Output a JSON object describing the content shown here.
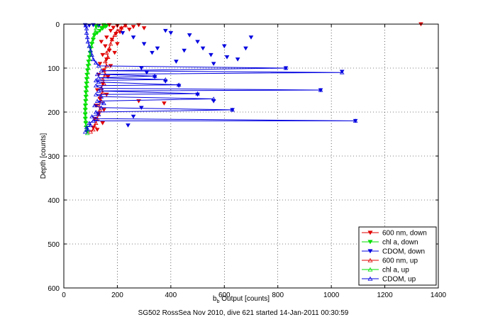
{
  "chart_data": {
    "type": "scatter",
    "x_axis": {
      "label_main": "b",
      "label_sub": "b",
      "label_rest": " Output [counts]",
      "range": [
        0,
        1400
      ],
      "ticks": [
        "0",
        "200",
        "400",
        "600",
        "800",
        "1000",
        "1200",
        "1400"
      ]
    },
    "y_axis": {
      "label": "Depth [counts]",
      "range": [
        0,
        600
      ],
      "reversed": true,
      "ticks": [
        "0",
        "100",
        "200",
        "300",
        "400",
        "500",
        "600"
      ]
    },
    "grid": true,
    "legend_position": "bottom-right",
    "footer": "SG502 RossSea Nov 2010, dive 621 started 14-Jan-2011 00:30:59",
    "colors": {
      "red": "#e00000",
      "green": "#00e000",
      "blue": "#0000e0"
    },
    "series": [
      {
        "name": "600 nm, down",
        "color": "#e00000",
        "marker": "down-triangle",
        "line": false,
        "points": [
          [
            150,
            5
          ],
          [
            170,
            2
          ],
          [
            185,
            8
          ],
          [
            200,
            4
          ],
          [
            215,
            10
          ],
          [
            230,
            3
          ],
          [
            245,
            12
          ],
          [
            260,
            6
          ],
          [
            280,
            2
          ],
          [
            300,
            9
          ],
          [
            175,
            15
          ],
          [
            195,
            22
          ],
          [
            210,
            18
          ],
          [
            160,
            30
          ],
          [
            140,
            40
          ],
          [
            180,
            35
          ],
          [
            200,
            45
          ],
          [
            155,
            50
          ],
          [
            170,
            60
          ],
          [
            145,
            70
          ],
          [
            190,
            65
          ],
          [
            160,
            80
          ],
          [
            135,
            90
          ],
          [
            175,
            95
          ],
          [
            150,
            105
          ],
          [
            130,
            115
          ],
          [
            165,
            120
          ],
          [
            145,
            135
          ],
          [
            125,
            150
          ],
          [
            160,
            160
          ],
          [
            135,
            170
          ],
          [
            120,
            185
          ],
          [
            150,
            195
          ],
          [
            130,
            205
          ],
          [
            115,
            215
          ],
          [
            145,
            225
          ],
          [
            110,
            235
          ],
          [
            125,
            240
          ],
          [
            1335,
            0
          ],
          [
            375,
            180
          ],
          [
            280,
            175
          ]
        ]
      },
      {
        "name": "chl a, down",
        "color": "#00e000",
        "marker": "down-triangle",
        "line": false,
        "points": [
          [
            120,
            5
          ],
          [
            130,
            3
          ],
          [
            140,
            8
          ],
          [
            150,
            2
          ],
          [
            155,
            6
          ],
          [
            160,
            4
          ],
          [
            145,
            10
          ],
          [
            135,
            15
          ],
          [
            125,
            20
          ],
          [
            115,
            25
          ],
          [
            110,
            35
          ],
          [
            105,
            45
          ],
          [
            100,
            55
          ],
          [
            98,
            65
          ],
          [
            95,
            75
          ],
          [
            92,
            85
          ],
          [
            90,
            95
          ],
          [
            88,
            105
          ],
          [
            86,
            115
          ],
          [
            85,
            125
          ],
          [
            84,
            135
          ],
          [
            83,
            145
          ],
          [
            82,
            155
          ],
          [
            82,
            165
          ],
          [
            81,
            175
          ],
          [
            80,
            185
          ],
          [
            80,
            195
          ],
          [
            80,
            205
          ],
          [
            80,
            215
          ],
          [
            82,
            225
          ],
          [
            85,
            235
          ],
          [
            88,
            245
          ]
        ]
      },
      {
        "name": "CDOM, down",
        "color": "#0000e0",
        "marker": "down-triangle",
        "line": false,
        "points": [
          [
            80,
            2
          ],
          [
            95,
            3
          ],
          [
            110,
            2
          ],
          [
            130,
            4
          ],
          [
            220,
            20
          ],
          [
            260,
            30
          ],
          [
            300,
            45
          ],
          [
            350,
            55
          ],
          [
            400,
            20
          ],
          [
            450,
            60
          ],
          [
            500,
            40
          ],
          [
            550,
            70
          ],
          [
            600,
            50
          ],
          [
            650,
            80
          ],
          [
            680,
            55
          ],
          [
            700,
            30
          ],
          [
            560,
            90
          ],
          [
            420,
            85
          ],
          [
            380,
            15
          ],
          [
            470,
            25
          ],
          [
            520,
            55
          ],
          [
            610,
            75
          ],
          [
            330,
            65
          ],
          [
            290,
            100
          ],
          [
            830,
            100
          ],
          [
            1040,
            108
          ],
          [
            960,
            150
          ],
          [
            630,
            195
          ],
          [
            1090,
            220
          ],
          [
            560,
            175
          ],
          [
            500,
            160
          ],
          [
            430,
            140
          ],
          [
            380,
            130
          ],
          [
            340,
            120
          ],
          [
            310,
            110
          ],
          [
            290,
            190
          ],
          [
            260,
            210
          ],
          [
            240,
            230
          ]
        ]
      },
      {
        "name": "600 nm, up",
        "color": "#e00000",
        "marker": "up-triangle",
        "line": true,
        "points": [
          [
            100,
            245
          ],
          [
            110,
            240
          ],
          [
            115,
            232
          ],
          [
            120,
            225
          ],
          [
            125,
            215
          ],
          [
            130,
            205
          ],
          [
            135,
            195
          ],
          [
            130,
            185
          ],
          [
            140,
            175
          ],
          [
            135,
            165
          ],
          [
            145,
            155
          ],
          [
            140,
            145
          ],
          [
            150,
            135
          ],
          [
            145,
            125
          ],
          [
            155,
            115
          ],
          [
            150,
            105
          ],
          [
            160,
            95
          ],
          [
            155,
            85
          ],
          [
            165,
            75
          ],
          [
            160,
            65
          ],
          [
            170,
            55
          ],
          [
            175,
            45
          ],
          [
            180,
            35
          ],
          [
            190,
            25
          ],
          [
            200,
            15
          ],
          [
            215,
            8
          ],
          [
            230,
            3
          ]
        ]
      },
      {
        "name": "chl a, up",
        "color": "#00e000",
        "marker": "up-triangle",
        "line": true,
        "points": [
          [
            88,
            248
          ],
          [
            85,
            240
          ],
          [
            83,
            230
          ],
          [
            82,
            220
          ],
          [
            81,
            210
          ],
          [
            80,
            200
          ],
          [
            81,
            190
          ],
          [
            82,
            180
          ],
          [
            83,
            170
          ],
          [
            84,
            160
          ],
          [
            85,
            150
          ],
          [
            86,
            140
          ],
          [
            87,
            130
          ],
          [
            88,
            120
          ],
          [
            90,
            110
          ],
          [
            92,
            100
          ],
          [
            94,
            90
          ],
          [
            96,
            80
          ],
          [
            98,
            70
          ],
          [
            100,
            60
          ],
          [
            103,
            50
          ],
          [
            106,
            40
          ],
          [
            110,
            30
          ],
          [
            115,
            20
          ],
          [
            120,
            10
          ],
          [
            125,
            3
          ]
        ]
      },
      {
        "name": "CDOM, up",
        "color": "#0000e0",
        "marker": "up-triangle",
        "line": true,
        "points": [
          [
            80,
            245
          ],
          [
            90,
            240
          ],
          [
            85,
            235
          ],
          [
            100,
            230
          ],
          [
            95,
            225
          ],
          [
            110,
            220
          ],
          [
            1090,
            220
          ],
          [
            120,
            215
          ],
          [
            105,
            210
          ],
          [
            130,
            205
          ],
          [
            120,
            200
          ],
          [
            630,
            195
          ],
          [
            140,
            190
          ],
          [
            115,
            185
          ],
          [
            150,
            180
          ],
          [
            125,
            175
          ],
          [
            560,
            170
          ],
          [
            140,
            165
          ],
          [
            120,
            160
          ],
          [
            500,
            158
          ],
          [
            130,
            152
          ],
          [
            960,
            150
          ],
          [
            140,
            146
          ],
          [
            120,
            140
          ],
          [
            430,
            138
          ],
          [
            130,
            132
          ],
          [
            120,
            128
          ],
          [
            380,
            126
          ],
          [
            130,
            122
          ],
          [
            340,
            118
          ],
          [
            125,
            114
          ],
          [
            1040,
            110
          ],
          [
            140,
            106
          ],
          [
            830,
            100
          ],
          [
            130,
            95
          ],
          [
            120,
            88
          ],
          [
            110,
            80
          ],
          [
            105,
            70
          ],
          [
            100,
            60
          ],
          [
            95,
            50
          ],
          [
            90,
            40
          ],
          [
            88,
            30
          ],
          [
            85,
            20
          ],
          [
            85,
            10
          ],
          [
            82,
            3
          ]
        ]
      }
    ]
  }
}
